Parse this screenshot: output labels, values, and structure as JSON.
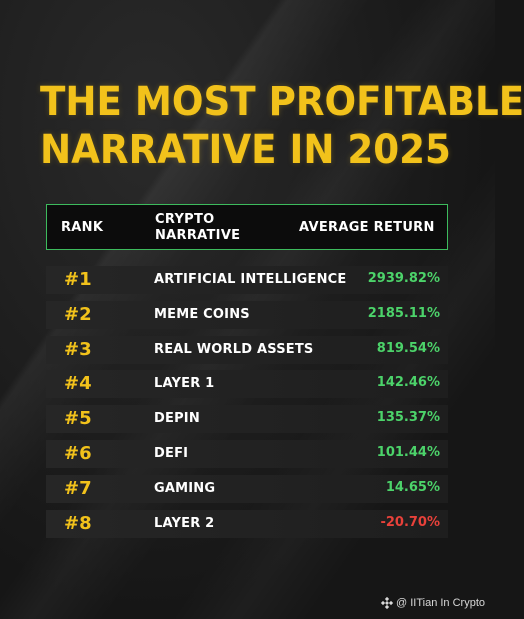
{
  "title_line1": "THE MOST PROFITABLE",
  "title_line2": "NARRATIVE IN 2025",
  "colors": {
    "accent": "#f2c21b",
    "positive": "#4cd36a",
    "negative": "#e8413a",
    "border": "#3dbb5d"
  },
  "credit": {
    "icon": "binance-logo-icon",
    "text": "@ IITian In Crypto"
  },
  "chart_data": {
    "type": "table",
    "title": "THE MOST PROFITABLE NARRATIVE IN 2025",
    "columns": [
      "RANK",
      "CRYPTO NARRATIVE",
      "AVERAGE RETURN"
    ],
    "column_narrative_lines": [
      "CRYPTO",
      "NARRATIVE"
    ],
    "rows": [
      {
        "rank": "#1",
        "narrative": "ARTIFICIAL INTELLIGENCE",
        "return": "2939.82%",
        "value": 2939.82
      },
      {
        "rank": "#2",
        "narrative": "MEME COINS",
        "return": "2185.11%",
        "value": 2185.11
      },
      {
        "rank": "#3",
        "narrative": "REAL WORLD ASSETS",
        "return": "819.54%",
        "value": 819.54
      },
      {
        "rank": "#4",
        "narrative": "LAYER 1",
        "return": "142.46%",
        "value": 142.46
      },
      {
        "rank": "#5",
        "narrative": "DEPIN",
        "return": "135.37%",
        "value": 135.37
      },
      {
        "rank": "#6",
        "narrative": "DEFI",
        "return": "101.44%",
        "value": 101.44
      },
      {
        "rank": "#7",
        "narrative": "GAMING",
        "return": "14.65%",
        "value": 14.65
      },
      {
        "rank": "#8",
        "narrative": "LAYER 2",
        "return": "-20.70%",
        "value": -20.7
      }
    ]
  }
}
